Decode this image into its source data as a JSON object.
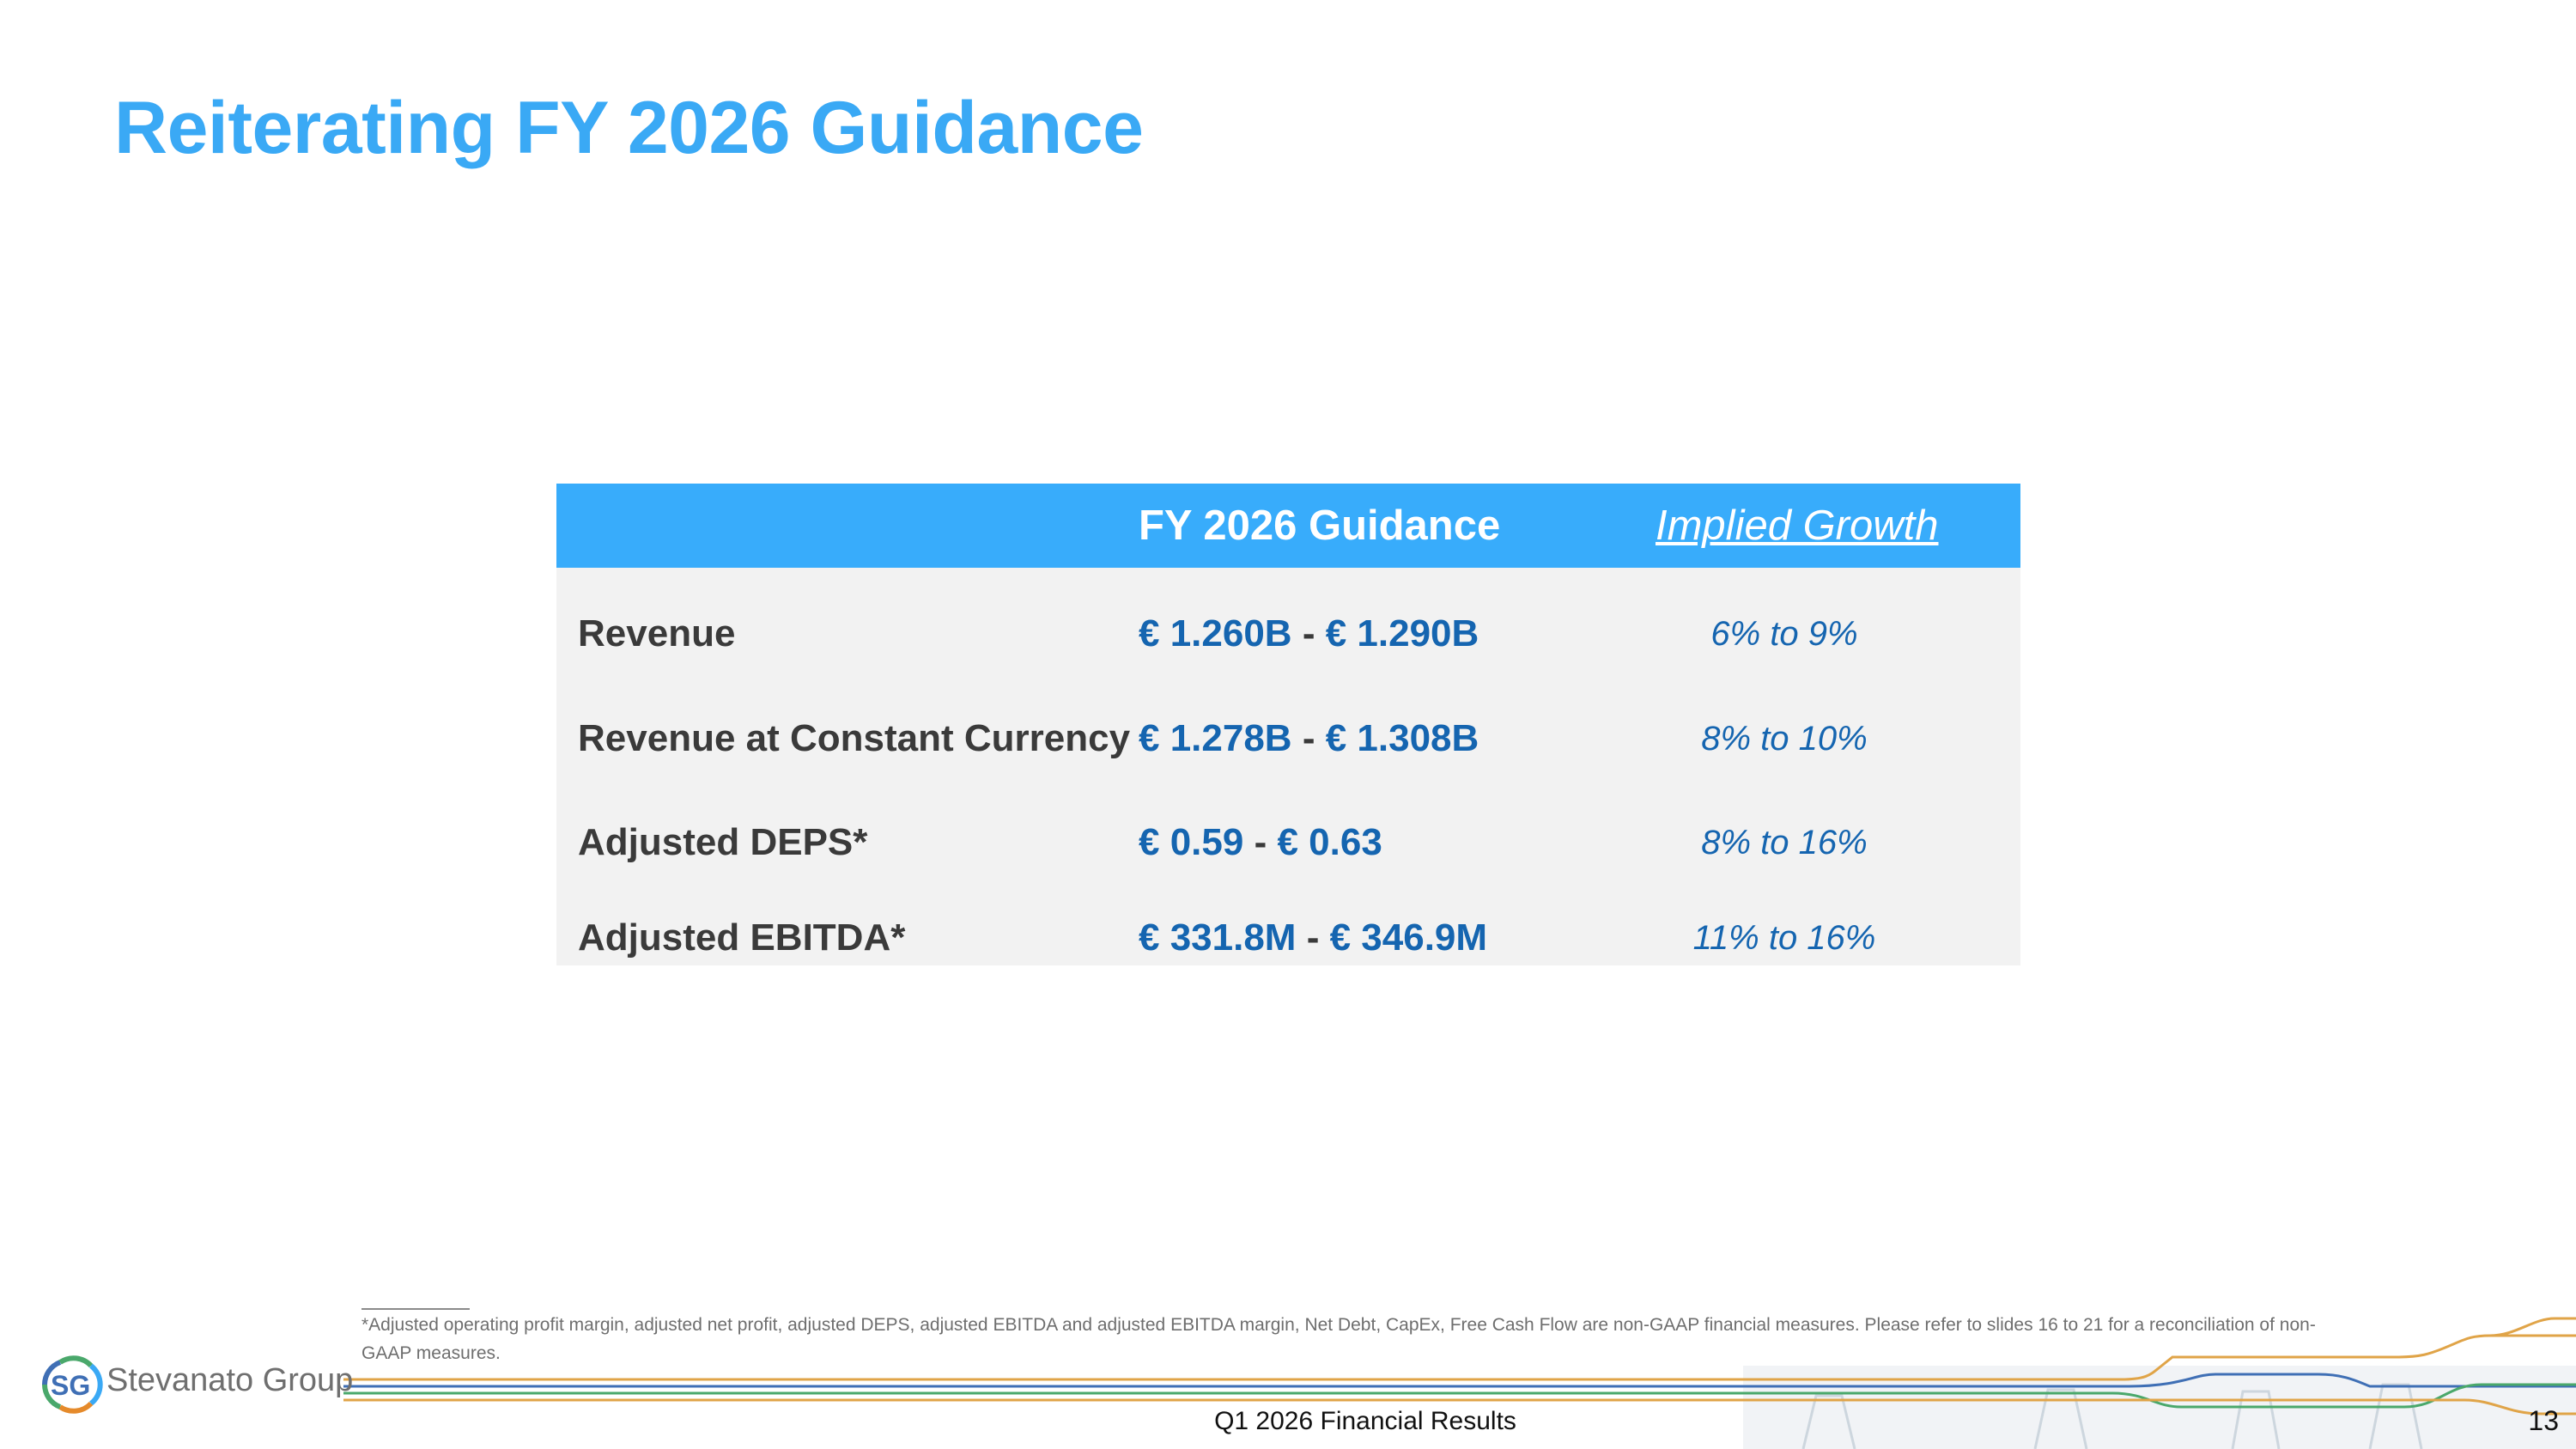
{
  "slide": {
    "title": "Reiterating FY 2026 Guidance"
  },
  "table": {
    "headers": [
      "",
      "FY 2026 Guidance",
      "Implied Growth"
    ],
    "rows": [
      {
        "label": "Revenue",
        "low": "€ 1.260B",
        "separator": "-",
        "high": "€ 1.290B",
        "growth": "6% to 9%"
      },
      {
        "label": "Revenue at Constant Currency",
        "low": "€ 1.278B",
        "separator": "-",
        "high": "€ 1.308B",
        "growth": "8% to 10%"
      },
      {
        "label": "Adjusted DEPS*",
        "low": "€ 0.59",
        "separator": "-",
        "high": "€ 0.63",
        "growth": "8% to 16%"
      },
      {
        "label": "Adjusted EBITDA*",
        "low": "€ 331.8M",
        "separator": "-",
        "high": "€ 346.9M",
        "growth": "11% to 16%"
      }
    ]
  },
  "footnote": "*Adjusted operating profit margin, adjusted net profit, adjusted DEPS, adjusted EBITDA and adjusted EBITDA margin, Net Debt, CapEx, Free Cash Flow are non-GAAP financial measures. Please refer to slides 16 to 21 for a reconciliation of non-GAAP measures.",
  "logo": {
    "mark": "SG",
    "name": "Stevanato Group"
  },
  "footer": {
    "title": "Q1 2026 Financial Results",
    "page_number": "13"
  },
  "colors": {
    "title": "#3aa9f5",
    "header_bg": "#38acfb",
    "table_bg": "#f2f2f2",
    "value_text": "#1565b0",
    "label_text": "#3a3a3a"
  }
}
